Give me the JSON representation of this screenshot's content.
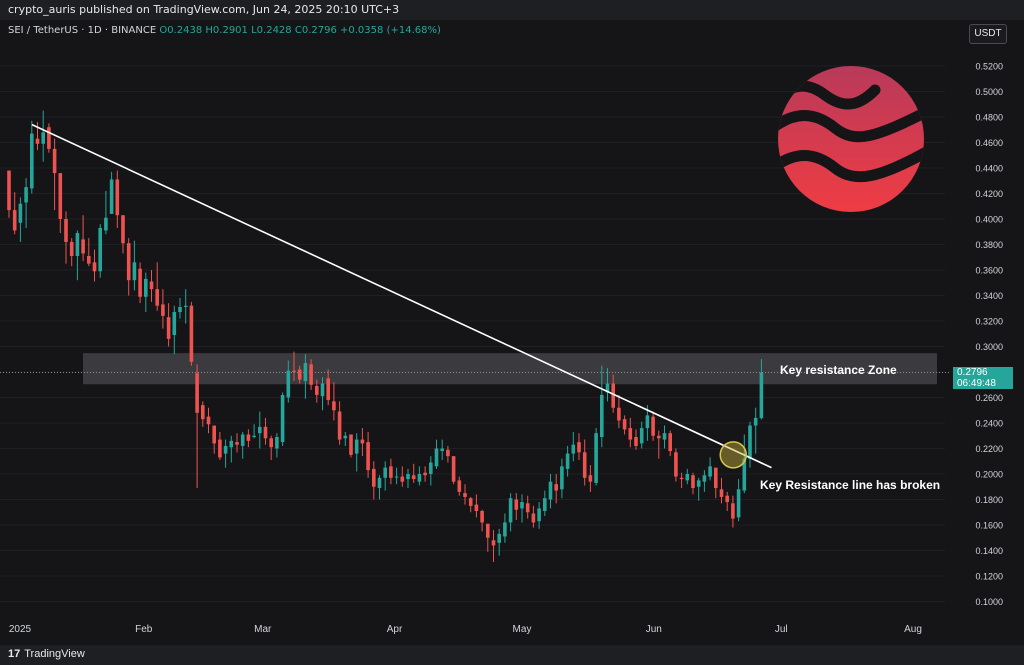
{
  "header": {
    "published": "crypto_auris published on TradingView.com, Jun 24, 2025 20:10 UTC+3"
  },
  "symbol_info": {
    "pair": "SEI / TetherUS · 1D · BINANCE",
    "open": "O0.2438",
    "high": "H0.2901",
    "low": "L0.2428",
    "close": "C0.2796",
    "change": "+0.0358 (+14.68%)"
  },
  "currency": "USDT",
  "last_price": {
    "value": "0.2796",
    "countdown": "06:49:48"
  },
  "annotations": {
    "zone_label": "Key resistance Zone",
    "break_label": "Key Resistance line has broken"
  },
  "footer": {
    "brand": "TradingView"
  },
  "colors": {
    "up": "#26a69a",
    "down": "#ef5350",
    "background": "#151518",
    "zone": "#5a5a60",
    "trendline": "#ffffff",
    "highlight": "#c8b43c",
    "logo_top": "#b83a5a",
    "logo_bottom": "#ef3c44"
  },
  "chart_data": {
    "type": "candlestick",
    "y_axis": {
      "ticks": [
        "0.5200",
        "0.5000",
        "0.4800",
        "0.4600",
        "0.4400",
        "0.4200",
        "0.4000",
        "0.3800",
        "0.3600",
        "0.3400",
        "0.3200",
        "0.3000",
        "0.2800",
        "0.2600",
        "0.2400",
        "0.2200",
        "0.2000",
        "0.1800",
        "0.1600",
        "0.1400",
        "0.1200",
        "0.1000"
      ],
      "range": [
        0.08,
        0.53
      ]
    },
    "x_axis": {
      "ticks": [
        "2025",
        "Feb",
        "Mar",
        "Apr",
        "May",
        "Jun",
        "Jul",
        "Aug"
      ]
    },
    "resistance_zone": [
      0.2704,
      0.2948
    ],
    "trendline": {
      "start": {
        "date": "2025-01-05",
        "price": 0.474
      },
      "end": {
        "date": "2025-06-28",
        "price": 0.205
      }
    },
    "breakout_marker": {
      "date": "2025-06-19",
      "price": 0.215
    },
    "series": [
      {
        "values": [
          [
            0.438,
            0.434,
            0.401,
            0.407
          ],
          [
            0.407,
            0.421,
            0.388,
            0.391
          ],
          [
            0.397,
            0.417,
            0.382,
            0.412
          ],
          [
            0.413,
            0.432,
            0.393,
            0.425
          ],
          [
            0.424,
            0.477,
            0.42,
            0.467
          ],
          [
            0.463,
            0.476,
            0.454,
            0.459
          ],
          [
            0.459,
            0.485,
            0.445,
            0.468
          ],
          [
            0.472,
            0.475,
            0.452,
            0.455
          ],
          [
            0.455,
            0.463,
            0.407,
            0.436
          ],
          [
            0.436,
            0.422,
            0.389,
            0.4
          ],
          [
            0.4,
            0.406,
            0.365,
            0.382
          ],
          [
            0.382,
            0.385,
            0.363,
            0.371
          ],
          [
            0.371,
            0.391,
            0.352,
            0.389
          ],
          [
            0.384,
            0.403,
            0.367,
            0.373
          ],
          [
            0.371,
            0.385,
            0.363,
            0.365
          ],
          [
            0.366,
            0.376,
            0.351,
            0.359
          ],
          [
            0.359,
            0.396,
            0.354,
            0.393
          ],
          [
            0.391,
            0.422,
            0.388,
            0.401
          ],
          [
            0.404,
            0.437,
            0.404,
            0.431
          ],
          [
            0.431,
            0.438,
            0.393,
            0.403
          ],
          [
            0.403,
            0.399,
            0.373,
            0.381
          ],
          [
            0.381,
            0.385,
            0.34,
            0.352
          ],
          [
            0.352,
            0.383,
            0.344,
            0.366
          ],
          [
            0.361,
            0.366,
            0.334,
            0.339
          ],
          [
            0.339,
            0.358,
            0.327,
            0.353
          ],
          [
            0.351,
            0.36,
            0.335,
            0.345
          ],
          [
            0.345,
            0.366,
            0.328,
            0.332
          ],
          [
            0.333,
            0.345,
            0.314,
            0.324
          ],
          [
            0.323,
            0.334,
            0.3,
            0.306
          ],
          [
            0.309,
            0.332,
            0.294,
            0.327
          ],
          [
            0.327,
            0.338,
            0.322,
            0.331
          ],
          [
            0.331,
            0.345,
            0.318,
            0.332
          ],
          [
            0.332,
            0.335,
            0.285,
            0.288
          ],
          [
            0.279,
            0.286,
            0.189,
            0.248
          ],
          [
            0.254,
            0.257,
            0.237,
            0.243
          ],
          [
            0.245,
            0.252,
            0.232,
            0.239
          ],
          [
            0.238,
            0.236,
            0.216,
            0.224
          ],
          [
            0.227,
            0.233,
            0.211,
            0.213
          ],
          [
            0.216,
            0.227,
            0.205,
            0.222
          ],
          [
            0.221,
            0.23,
            0.209,
            0.226
          ],
          [
            0.225,
            0.232,
            0.217,
            0.223
          ],
          [
            0.222,
            0.233,
            0.212,
            0.231
          ],
          [
            0.231,
            0.235,
            0.221,
            0.226
          ],
          [
            0.229,
            0.239,
            0.228,
            0.23
          ],
          [
            0.232,
            0.249,
            0.22,
            0.237
          ],
          [
            0.237,
            0.244,
            0.223,
            0.228
          ],
          [
            0.228,
            0.23,
            0.211,
            0.221
          ],
          [
            0.22,
            0.232,
            0.213,
            0.229
          ],
          [
            0.225,
            0.264,
            0.222,
            0.262
          ],
          [
            0.26,
            0.289,
            0.256,
            0.281
          ],
          [
            0.281,
            0.296,
            0.273,
            0.28
          ],
          [
            0.282,
            0.285,
            0.271,
            0.274
          ],
          [
            0.273,
            0.294,
            0.259,
            0.287
          ],
          [
            0.286,
            0.29,
            0.266,
            0.27
          ],
          [
            0.269,
            0.274,
            0.256,
            0.262
          ],
          [
            0.261,
            0.276,
            0.25,
            0.271
          ],
          [
            0.275,
            0.282,
            0.254,
            0.258
          ],
          [
            0.257,
            0.272,
            0.242,
            0.25
          ],
          [
            0.249,
            0.257,
            0.223,
            0.227
          ],
          [
            0.228,
            0.233,
            0.222,
            0.23
          ],
          [
            0.231,
            0.23,
            0.213,
            0.215
          ],
          [
            0.216,
            0.232,
            0.202,
            0.227
          ],
          [
            0.227,
            0.236,
            0.214,
            0.224
          ],
          [
            0.225,
            0.233,
            0.197,
            0.203
          ],
          [
            0.204,
            0.21,
            0.18,
            0.19
          ],
          [
            0.189,
            0.199,
            0.18,
            0.197
          ],
          [
            0.197,
            0.21,
            0.187,
            0.205
          ],
          [
            0.206,
            0.212,
            0.192,
            0.197
          ],
          [
            0.198,
            0.205,
            0.192,
            0.198
          ],
          [
            0.198,
            0.206,
            0.19,
            0.194
          ],
          [
            0.196,
            0.204,
            0.189,
            0.2
          ],
          [
            0.199,
            0.208,
            0.193,
            0.196
          ],
          [
            0.194,
            0.206,
            0.191,
            0.2
          ],
          [
            0.201,
            0.206,
            0.194,
            0.199
          ],
          [
            0.2,
            0.214,
            0.191,
            0.209
          ],
          [
            0.206,
            0.227,
            0.204,
            0.22
          ],
          [
            0.218,
            0.227,
            0.211,
            0.22
          ],
          [
            0.219,
            0.222,
            0.209,
            0.214
          ],
          [
            0.214,
            0.212,
            0.192,
            0.194
          ],
          [
            0.195,
            0.198,
            0.183,
            0.186
          ],
          [
            0.185,
            0.192,
            0.176,
            0.182
          ],
          [
            0.181,
            0.182,
            0.17,
            0.175
          ],
          [
            0.176,
            0.184,
            0.166,
            0.171
          ],
          [
            0.171,
            0.172,
            0.155,
            0.162
          ],
          [
            0.161,
            0.16,
            0.139,
            0.15
          ],
          [
            0.148,
            0.156,
            0.131,
            0.144
          ],
          [
            0.146,
            0.157,
            0.136,
            0.153
          ],
          [
            0.151,
            0.169,
            0.146,
            0.162
          ],
          [
            0.162,
            0.185,
            0.155,
            0.181
          ],
          [
            0.18,
            0.185,
            0.164,
            0.172
          ],
          [
            0.173,
            0.184,
            0.162,
            0.178
          ],
          [
            0.177,
            0.183,
            0.165,
            0.17
          ],
          [
            0.169,
            0.175,
            0.158,
            0.162
          ],
          [
            0.163,
            0.178,
            0.157,
            0.173
          ],
          [
            0.171,
            0.187,
            0.167,
            0.181
          ],
          [
            0.18,
            0.2,
            0.173,
            0.194
          ],
          [
            0.192,
            0.2,
            0.177,
            0.187
          ],
          [
            0.188,
            0.212,
            0.181,
            0.206
          ],
          [
            0.204,
            0.222,
            0.198,
            0.216
          ],
          [
            0.216,
            0.233,
            0.21,
            0.223
          ],
          [
            0.225,
            0.232,
            0.211,
            0.217
          ],
          [
            0.217,
            0.227,
            0.191,
            0.197
          ],
          [
            0.199,
            0.207,
            0.186,
            0.194
          ],
          [
            0.193,
            0.236,
            0.191,
            0.232
          ],
          [
            0.229,
            0.285,
            0.221,
            0.262
          ],
          [
            0.264,
            0.283,
            0.257,
            0.271
          ],
          [
            0.271,
            0.278,
            0.248,
            0.252
          ],
          [
            0.252,
            0.262,
            0.236,
            0.242
          ],
          [
            0.243,
            0.246,
            0.231,
            0.235
          ],
          [
            0.236,
            0.244,
            0.221,
            0.227
          ],
          [
            0.229,
            0.235,
            0.219,
            0.222
          ],
          [
            0.224,
            0.241,
            0.22,
            0.236
          ],
          [
            0.236,
            0.254,
            0.226,
            0.246
          ],
          [
            0.245,
            0.249,
            0.226,
            0.23
          ],
          [
            0.23,
            0.234,
            0.212,
            0.228
          ],
          [
            0.227,
            0.238,
            0.22,
            0.232
          ],
          [
            0.232,
            0.234,
            0.214,
            0.218
          ],
          [
            0.217,
            0.22,
            0.194,
            0.198
          ],
          [
            0.197,
            0.201,
            0.189,
            0.196
          ],
          [
            0.195,
            0.204,
            0.192,
            0.2
          ],
          [
            0.199,
            0.201,
            0.184,
            0.189
          ],
          [
            0.19,
            0.197,
            0.179,
            0.195
          ],
          [
            0.194,
            0.203,
            0.186,
            0.199
          ],
          [
            0.198,
            0.213,
            0.195,
            0.206
          ],
          [
            0.205,
            0.201,
            0.181,
            0.189
          ],
          [
            0.188,
            0.197,
            0.177,
            0.182
          ],
          [
            0.183,
            0.186,
            0.171,
            0.178
          ],
          [
            0.177,
            0.183,
            0.158,
            0.165
          ],
          [
            0.166,
            0.196,
            0.163,
            0.188
          ],
          [
            0.187,
            0.231,
            0.185,
            0.212
          ],
          [
            0.212,
            0.241,
            0.205,
            0.238
          ],
          [
            0.238,
            0.252,
            0.216,
            0.244
          ],
          [
            0.2438,
            0.2901,
            0.2428,
            0.2796
          ]
        ]
      }
    ]
  }
}
